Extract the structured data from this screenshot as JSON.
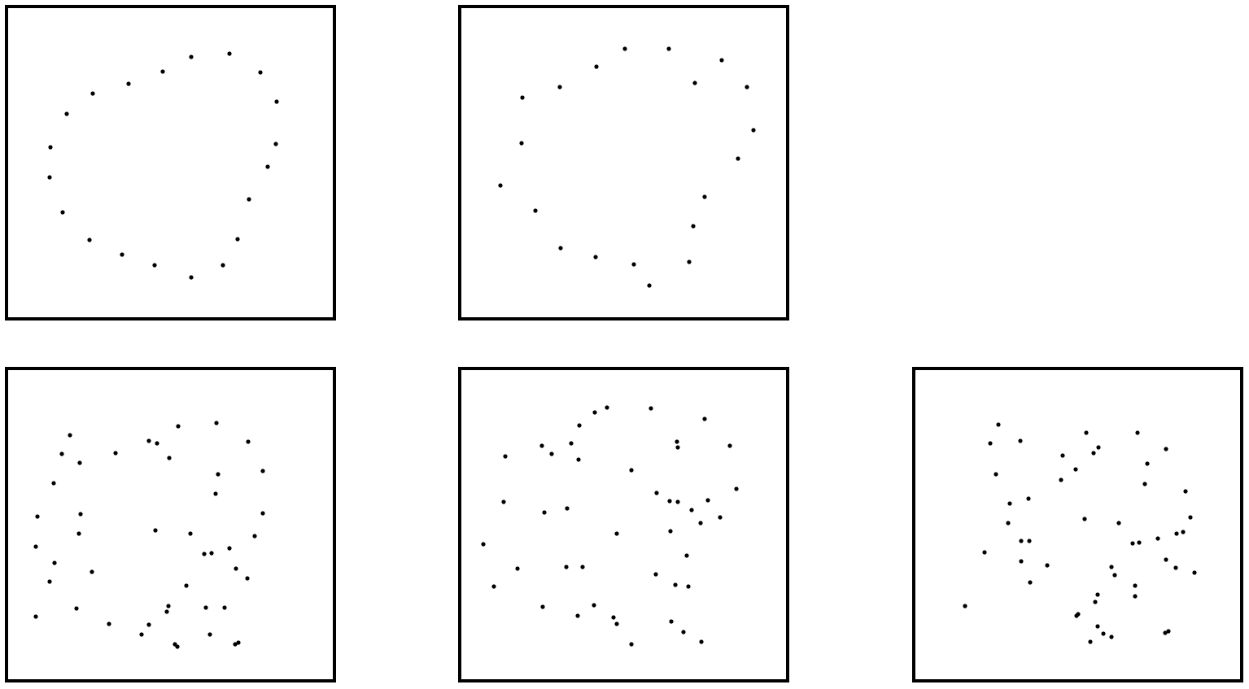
{
  "chart_data": [
    {
      "type": "scatter",
      "color": "#000000",
      "xlim": [
        0,
        403
      ],
      "ylim": [
        384,
        0
      ],
      "x": [
        227,
        274,
        312,
        332,
        331,
        321,
        298,
        284,
        266,
        227,
        182,
        142,
        102,
        69,
        53,
        54,
        74,
        106,
        150,
        192
      ],
      "values": [
        62,
        58,
        81,
        117,
        169,
        197,
        237,
        286,
        318,
        333,
        318,
        305,
        287,
        253,
        210,
        173,
        132,
        107,
        95,
        80
      ]
    },
    {
      "type": "scatter",
      "color": "#000000",
      "xlim": [
        0,
        403
      ],
      "ylim": [
        384,
        0
      ],
      "x": [
        203,
        257,
        322,
        289,
        353,
        361,
        342,
        301,
        287,
        282,
        233,
        214,
        167,
        124,
        93,
        50,
        76,
        77,
        123,
        168
      ],
      "values": [
        52,
        52,
        66,
        94,
        99,
        152,
        187,
        234,
        270,
        314,
        343,
        317,
        308,
        297,
        251,
        220,
        168,
        112,
        99,
        74
      ]
    },
    {
      "type": "scatter",
      "color": "#000000",
      "xlim": [
        0,
        403
      ],
      "ylim": [
        384,
        0
      ],
      "x": [
        78,
        68,
        90,
        58,
        38,
        91,
        89,
        36,
        59,
        53,
        105,
        36,
        86,
        126,
        134,
        175,
        185,
        211,
        200,
        258,
        297,
        260,
        315,
        257,
        315,
        305,
        183,
        226,
        243,
        252,
        274,
        282,
        296,
        221,
        199,
        197,
        245,
        268,
        250,
        175,
        166,
        207,
        210,
        281,
        285
      ],
      "values": [
        82,
        105,
        116,
        141,
        182,
        179,
        203,
        219,
        239,
        262,
        250,
        305,
        295,
        314,
        104,
        89,
        92,
        71,
        110,
        67,
        90,
        130,
        126,
        154,
        178,
        206,
        199,
        203,
        228,
        227,
        221,
        246,
        258,
        267,
        292,
        299,
        294,
        294,
        327,
        315,
        327,
        339,
        342,
        339,
        337
      ]
    },
    {
      "type": "scatter",
      "color": "#000000",
      "xlim": [
        0,
        403
      ],
      "ylim": [
        384,
        0
      ],
      "x": [
        181,
        166,
        147,
        235,
        301,
        101,
        113,
        137,
        146,
        56,
        267,
        268,
        332,
        211,
        340,
        242,
        258,
        268,
        305,
        285,
        320,
        296,
        54,
        104,
        132,
        193,
        259,
        29,
        71,
        131,
        151,
        279,
        241,
        265,
        281,
        42,
        102,
        145,
        165,
        189,
        193,
        260,
        275,
        297,
        211
      ],
      "values": [
        48,
        54,
        70,
        49,
        62,
        95,
        105,
        92,
        112,
        108,
        90,
        97,
        95,
        125,
        148,
        153,
        163,
        164,
        162,
        174,
        183,
        190,
        164,
        177,
        172,
        203,
        200,
        216,
        246,
        244,
        244,
        230,
        253,
        266,
        268,
        268,
        293,
        304,
        291,
        306,
        314,
        311,
        324,
        336,
        339
      ]
    },
    {
      "type": "scatter",
      "color": "#000000",
      "xlim": [
        0,
        403
      ],
      "ylim": [
        384,
        0
      ],
      "x": [
        104,
        94,
        131,
        212,
        275,
        227,
        221,
        310,
        183,
        287,
        101,
        199,
        181,
        284,
        141,
        118,
        334,
        116,
        210,
        252,
        340,
        331,
        323,
        300,
        269,
        277,
        132,
        142,
        87,
        132,
        164,
        143,
        243,
        247,
        310,
        322,
        345,
        272,
        272,
        226,
        223,
        202,
        200,
        63,
        226,
        233,
        243,
        217,
        309,
        313
      ],
      "values": [
        69,
        92,
        89,
        79,
        79,
        97,
        104,
        99,
        107,
        117,
        130,
        124,
        137,
        142,
        160,
        166,
        151,
        190,
        185,
        190,
        183,
        201,
        203,
        209,
        215,
        214,
        212,
        212,
        226,
        237,
        242,
        263,
        244,
        254,
        235,
        245,
        251,
        267,
        280,
        278,
        287,
        302,
        304,
        292,
        317,
        326,
        330,
        336,
        325,
        323
      ]
    }
  ]
}
